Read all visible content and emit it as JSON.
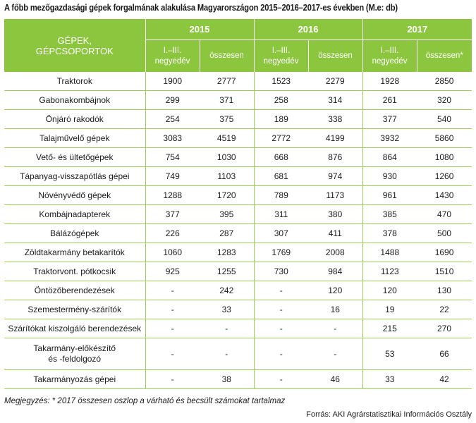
{
  "title": "A főbb mezőgazdasági gépek forgalmának alakulása Magyarországon 2015–2016–2017-es években  (M.e: db)",
  "header": {
    "category": "GÉPEK,\nGÉPCSOPORTOK",
    "years": [
      "2015",
      "2016",
      "2017"
    ],
    "sub": [
      "I.–III.\nnegyedév",
      "összesen",
      "I.–III.\nnegyedév",
      "összesen",
      "I.–III.\nnegyedév",
      "összesen*"
    ]
  },
  "rows": [
    {
      "name": "Traktorok",
      "v": [
        "1900",
        "2777",
        "1523",
        "2279",
        "1928",
        "2850"
      ]
    },
    {
      "name": "Gabonakombájnok",
      "v": [
        "299",
        "371",
        "258",
        "314",
        "261",
        "320"
      ]
    },
    {
      "name": "Önjáró rakodók",
      "v": [
        "254",
        "375",
        "189",
        "338",
        "377",
        "540"
      ]
    },
    {
      "name": "Talajművelő gépek",
      "v": [
        "3083",
        "4519",
        "2772",
        "4199",
        "3932",
        "5860"
      ]
    },
    {
      "name": "Vető- és ültetőgépek",
      "v": [
        "754",
        "1030",
        "668",
        "876",
        "864",
        "1080"
      ]
    },
    {
      "name": "Tápanyag-visszapótlás gépei",
      "v": [
        "749",
        "1103",
        "681",
        "974",
        "930",
        "1260"
      ]
    },
    {
      "name": "Növényvédő gépek",
      "v": [
        "1288",
        "1720",
        "789",
        "1173",
        "961",
        "1430"
      ]
    },
    {
      "name": "Kombájnadapterek",
      "v": [
        "377",
        "395",
        "311",
        "380",
        "385",
        "470"
      ]
    },
    {
      "name": "Bálázógépek",
      "v": [
        "226",
        "287",
        "307",
        "411",
        "378",
        "500"
      ]
    },
    {
      "name": "Zöldtakarmány betakarítók",
      "v": [
        "1060",
        "1283",
        "1769",
        "2008",
        "1488",
        "1690"
      ]
    },
    {
      "name": "Traktorvont. pótkocsik",
      "v": [
        "925",
        "1255",
        "730",
        "984",
        "1123",
        "1510"
      ]
    },
    {
      "name": "Öntözőberendezések",
      "v": [
        "-",
        "242",
        "-",
        "120",
        "120",
        "130"
      ]
    },
    {
      "name": "Szemestermény-szárítók",
      "v": [
        "-",
        "33",
        "-",
        "16",
        "19",
        "22"
      ]
    },
    {
      "name": "Szárítókat kiszolgáló berendezések",
      "v": [
        "-",
        "-",
        "-",
        "-",
        "215",
        "270"
      ]
    },
    {
      "name": "Takarmány-előkészítő\nés -feldolgozó",
      "v": [
        "-",
        "-",
        "-",
        "-",
        "53",
        "66"
      ],
      "tall": true
    },
    {
      "name": "Takarmányozás gépei",
      "v": [
        "-",
        "38",
        "-",
        "46",
        "33",
        "42"
      ]
    }
  ],
  "note": "Megjegyzés: * 2017 összesen oszlop a várható és becsült számokat tartalmaz",
  "source": "Forrás: AKI Agrárstatisztikai Információs Osztály"
}
